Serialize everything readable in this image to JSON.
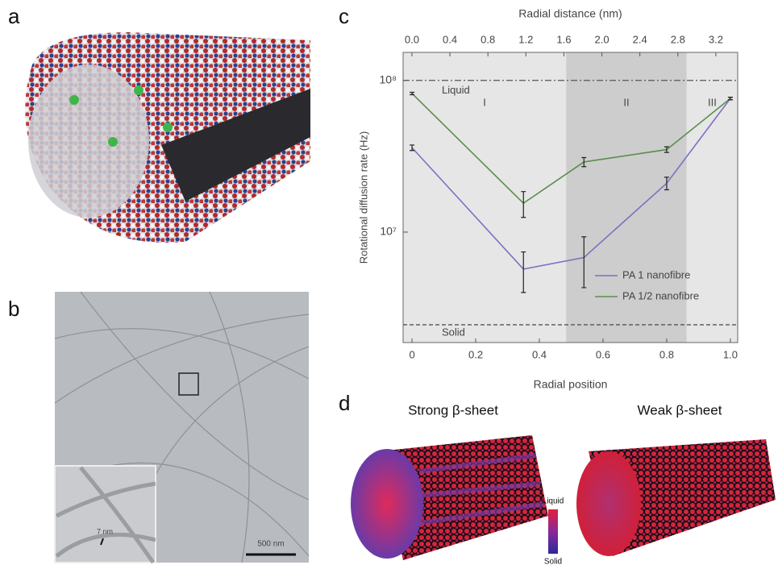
{
  "panels": {
    "a": {
      "label": "a"
    },
    "b": {
      "label": "b",
      "inset_label": "7 nm",
      "scale_bar": "500 nm"
    },
    "c": {
      "label": "c"
    },
    "d": {
      "label": "d",
      "left_title": "Strong β-sheet",
      "right_title": "Weak β-sheet",
      "colorbar_top": "Liquid",
      "colorbar_bottom": "Solid"
    }
  },
  "chart_data": {
    "type": "line",
    "x_label": "Radial position",
    "x2_label": "Radial distance (nm)",
    "y_label": "Rotational diffusion rate (Hz)",
    "x": [
      0,
      0.35,
      0.54,
      0.8,
      1.0
    ],
    "series": [
      {
        "name": "PA 1 nanofibre",
        "color": "#7a72c2",
        "values": [
          36000000,
          5700000,
          6800000,
          21000000,
          76000000
        ],
        "errors": [
          1500000,
          1700000,
          2500000,
          2000000,
          1500000
        ]
      },
      {
        "name": "PA 1/2 nanofibre",
        "color": "#5b8e4c",
        "values": [
          82000000,
          15500000,
          29000000,
          35000000,
          76000000
        ],
        "errors": [
          1500000,
          3000000,
          2000000,
          1500000,
          1500000
        ]
      }
    ],
    "xlim": [
      -0.028,
      1.023
    ],
    "xticks": [
      0,
      0.2,
      0.4,
      0.6,
      0.8,
      {
        "value": 1,
        "label": "1.0"
      }
    ],
    "x2lim": [
      -0.093,
      3.43
    ],
    "x2ticks": [
      {
        "value": 0,
        "label": "0.0"
      },
      0.4,
      0.8,
      1.2,
      1.6,
      {
        "value": 2,
        "label": "2.0"
      },
      2.4,
      2.8,
      3.2
    ],
    "ylim": [
      1870000,
      153000000
    ],
    "yticks": [
      {
        "value": 10000000,
        "label": "10⁷"
      },
      {
        "value": 100000000,
        "label": "10⁸"
      }
    ],
    "yscale": "log",
    "regions": [
      {
        "label": "I",
        "range": [
          -0.028,
          0.484
        ],
        "color": "#e6e6e6"
      },
      {
        "label": "II",
        "range": [
          0.484,
          0.863
        ],
        "color": "#cdcdcd"
      },
      {
        "label": "III",
        "range": [
          0.863,
          1.023
        ],
        "color": "#e6e6e6"
      }
    ],
    "reference_lines": [
      {
        "label": "Liquid",
        "value": 100000000,
        "style": "dashdot"
      },
      {
        "label": "Solid",
        "value": 2450000,
        "style": "dashed"
      }
    ],
    "legend": "lower right"
  }
}
